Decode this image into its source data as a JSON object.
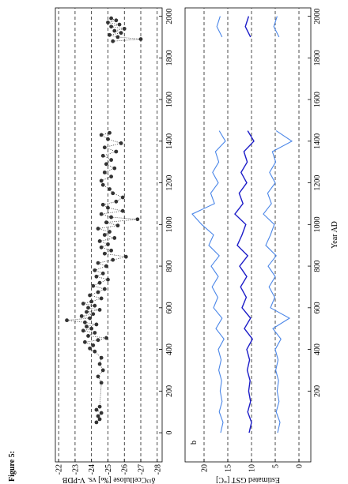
{
  "figure_label": "Figure 5:",
  "chart_data": [
    {
      "type": "scatter",
      "line_style": "dotted",
      "color": "#333333",
      "ylabel": "δ¹³Ccellulose [‰] vs. V-PDB",
      "xlim": [
        -140,
        2040
      ],
      "xticks": [
        0,
        200,
        400,
        600,
        800,
        1000,
        1200,
        1400,
        1600,
        1800,
        2000
      ],
      "ylim": [
        -28.3,
        -21.8
      ],
      "yticks": [
        -22,
        -23,
        -24,
        -25,
        -26,
        -27,
        -28
      ],
      "grid": true,
      "x": [
        50,
        65,
        80,
        95,
        110,
        125,
        240,
        270,
        300,
        330,
        360,
        390,
        405,
        420,
        435,
        445,
        455,
        465,
        480,
        490,
        500,
        510,
        520,
        530,
        540,
        550,
        560,
        570,
        580,
        590,
        600,
        610,
        620,
        630,
        645,
        660,
        675,
        690,
        705,
        720,
        735,
        750,
        765,
        780,
        800,
        815,
        830,
        845,
        860,
        875,
        890,
        905,
        920,
        935,
        950,
        965,
        980,
        995,
        1010,
        1025,
        1035,
        1050,
        1065,
        1080,
        1095,
        1110,
        1130,
        1150,
        1170,
        1190,
        1210,
        1230,
        1250,
        1270,
        1290,
        1310,
        1330,
        1350,
        1370,
        1390,
        1410,
        1430,
        1440,
        1660,
        1880,
        1890,
        1900,
        1910,
        1920,
        1930,
        1940,
        1950,
        1960,
        1970,
        1980,
        1990
      ],
      "values": [
        -24.3,
        -24.5,
        -24.4,
        -24.6,
        -24.3,
        -24.5,
        -24.6,
        -24.4,
        -24.7,
        -24.5,
        -24.6,
        -24.2,
        -23.9,
        -24.1,
        -23.6,
        -24.4,
        -24.9,
        -23.8,
        -24.2,
        -23.5,
        -24.0,
        -23.7,
        -24.3,
        -23.6,
        -22.5,
        -23.9,
        -23.4,
        -24.1,
        -23.7,
        -24.5,
        -23.8,
        -24.2,
        -23.5,
        -24.0,
        -24.6,
        -23.9,
        -24.4,
        -24.8,
        -24.1,
        -24.5,
        -25.0,
        -24.3,
        -24.7,
        -24.2,
        -24.9,
        -24.4,
        -25.3,
        -26.1,
        -24.8,
        -25.2,
        -24.6,
        -25.0,
        -24.5,
        -25.4,
        -24.8,
        -25.1,
        -24.4,
        -25.6,
        -24.9,
        -26.8,
        -25.2,
        -24.6,
        -25.9,
        -25.0,
        -24.7,
        -25.5,
        -25.9,
        -25.3,
        -25.1,
        -24.7,
        -24.6,
        -25.2,
        -24.8,
        -25.4,
        -24.9,
        -25.2,
        -24.7,
        -25.5,
        -24.8,
        -25.8,
        -25.0,
        -24.6,
        -25.1,
        null,
        -25.3,
        -27.0,
        -25.6,
        -25.1,
        -25.8,
        -25.4,
        -26.0,
        -25.2,
        -25.7,
        -25.0,
        -25.5,
        -25.2
      ]
    },
    {
      "type": "line",
      "panel_label": "b",
      "ylabel": "Estimated GST [°C]",
      "xlabel": "Year AD",
      "xlim": [
        -140,
        2040
      ],
      "xticks": [
        200,
        400,
        600,
        800,
        1000,
        1200,
        1400,
        1600,
        1800,
        2000
      ],
      "ylim": [
        -2.5,
        24
      ],
      "yticks": [
        20,
        15,
        10,
        5,
        0
      ],
      "grid": true,
      "x": [
        0,
        50,
        100,
        150,
        200,
        250,
        300,
        350,
        400,
        450,
        500,
        550,
        600,
        650,
        700,
        750,
        800,
        850,
        900,
        950,
        1000,
        1050,
        1100,
        1150,
        1200,
        1250,
        1300,
        1350,
        1400,
        1450,
        1500,
        1550,
        1600,
        1650,
        1700,
        1750,
        1800,
        1850,
        1900,
        1950,
        2000
      ],
      "series": [
        {
          "color": "#4a86e8",
          "values": [
            16.5,
            16.0,
            16.8,
            16.2,
            16.6,
            16.3,
            16.9,
            16.4,
            17.0,
            15.8,
            17.5,
            16.2,
            18.0,
            17.1,
            18.3,
            17.0,
            18.5,
            16.8,
            19.0,
            18.0,
            20.5,
            22.5,
            17.8,
            18.6,
            17.0,
            18.2,
            16.9,
            17.6,
            15.5,
            16.8,
            null,
            null,
            null,
            null,
            null,
            null,
            null,
            null,
            16.2,
            17.3,
            16.6
          ]
        },
        {
          "color": "#1c1cc8",
          "values": [
            10.5,
            10.0,
            10.8,
            10.2,
            10.6,
            10.3,
            10.9,
            10.4,
            11.0,
            9.8,
            11.5,
            10.2,
            12.0,
            11.1,
            12.3,
            11.0,
            12.5,
            10.8,
            13.0,
            12.0,
            11.2,
            13.5,
            11.8,
            12.6,
            11.0,
            12.2,
            10.9,
            11.6,
            9.5,
            10.8,
            null,
            null,
            null,
            null,
            null,
            null,
            null,
            null,
            10.2,
            11.3,
            10.6
          ]
        },
        {
          "color": "#4a86e8",
          "values": [
            4.5,
            4.0,
            4.8,
            4.2,
            4.6,
            4.3,
            4.9,
            4.4,
            5.0,
            3.8,
            5.5,
            2.0,
            6.0,
            5.1,
            6.3,
            5.0,
            6.5,
            4.8,
            7.0,
            6.0,
            5.2,
            7.5,
            5.8,
            6.6,
            5.0,
            6.2,
            4.9,
            5.6,
            1.5,
            4.8,
            null,
            null,
            null,
            null,
            null,
            null,
            null,
            null,
            4.2,
            5.3,
            4.6
          ]
        }
      ]
    }
  ]
}
